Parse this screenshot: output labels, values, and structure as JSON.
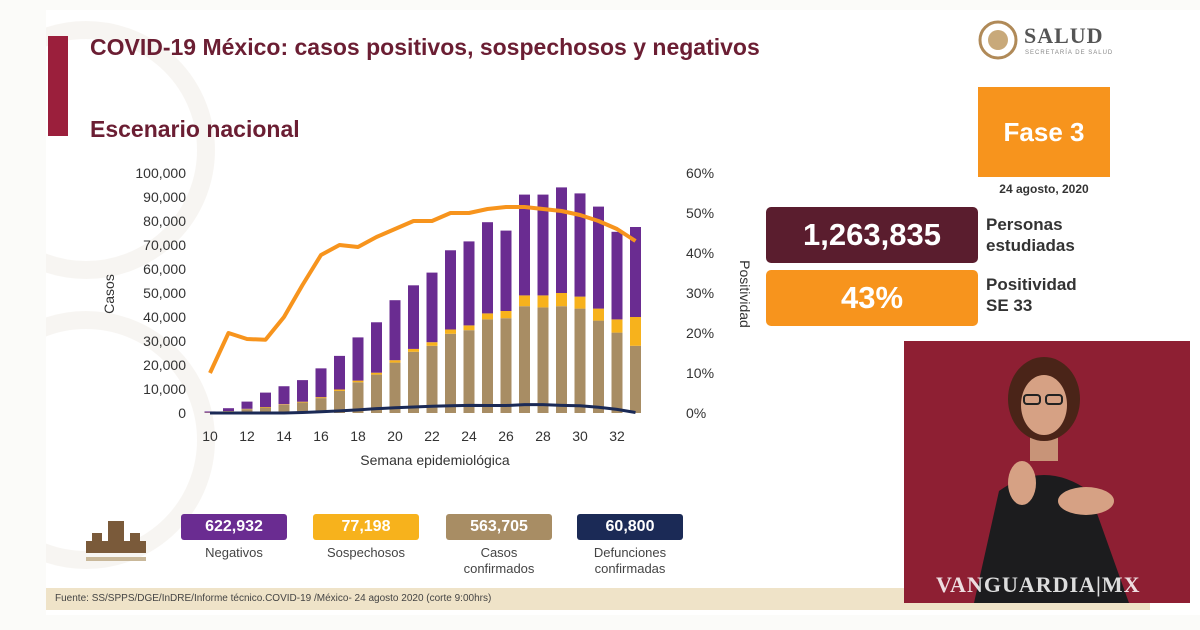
{
  "header": {
    "title": "COVID-19 México: casos positivos, sospechosos y negativos",
    "subtitle": "Escenario nacional"
  },
  "logo": {
    "name": "SALUD",
    "sub": "SECRETARÍA DE SALUD"
  },
  "phase": {
    "label": "Fase 3",
    "date": "24 agosto, 2020"
  },
  "stats": {
    "studied_value": "1,263,835",
    "studied_label_1": "Personas",
    "studied_label_2": "estudiadas",
    "positivity_value": "43%",
    "positivity_label_1": "Positividad",
    "positivity_label_2": "SE 33"
  },
  "legend": {
    "negativos": {
      "value": "622,932",
      "label": "Negativos",
      "color": "#6a2c91"
    },
    "sospechosos": {
      "value": "77,198",
      "label": "Sospechosos",
      "color": "#f7b21c"
    },
    "confirmados": {
      "value": "563,705",
      "label_1": "Casos",
      "label_2": "confirmados",
      "color": "#a88d64"
    },
    "defunciones": {
      "value": "60,800",
      "label_1": "Defunciones",
      "label_2": "confirmadas",
      "color": "#1b2a56"
    }
  },
  "source": "Fuente: SS/SPPS/DGE/InDRE/Informe técnico.COVID-19 /México- 24 agosto 2020 (corte 9:00hrs)",
  "watermark_text": "VANGUARDIA",
  "watermark_suffix": "MX",
  "chart_data": {
    "type": "bar",
    "stacked": true,
    "xlabel": "Semana epidemiológica",
    "ylabel": "Casos",
    "y2label": "Positividad",
    "ylim": [
      0,
      100000
    ],
    "y2lim": [
      0,
      60
    ],
    "yticks": [
      "0",
      "10,000",
      "20,000",
      "30,000",
      "40,000",
      "50,000",
      "60,000",
      "70,000",
      "80,000",
      "90,000",
      "100,000"
    ],
    "y2ticks": [
      "0%",
      "10%",
      "20%",
      "30%",
      "40%",
      "50%",
      "60%"
    ],
    "xticks": [
      "10",
      "12",
      "14",
      "16",
      "18",
      "20",
      "22",
      "24",
      "26",
      "28",
      "30",
      "32"
    ],
    "x": [
      10,
      11,
      12,
      13,
      14,
      15,
      16,
      17,
      18,
      19,
      20,
      21,
      22,
      23,
      24,
      25,
      26,
      27,
      28,
      29,
      30,
      31,
      32,
      33
    ],
    "series": [
      {
        "name": "Casos confirmados",
        "color": "#a88d64",
        "values": [
          100,
          700,
          1600,
          2300,
          3400,
          4400,
          6200,
          9200,
          12800,
          16000,
          21000,
          25500,
          28000,
          33000,
          34500,
          39000,
          39500,
          44500,
          44000,
          44500,
          43500,
          38500,
          33500,
          28000
        ]
      },
      {
        "name": "Sospechosos",
        "color": "#f7b21c",
        "values": [
          50,
          100,
          150,
          200,
          250,
          300,
          400,
          600,
          700,
          800,
          1000,
          1200,
          1500,
          1800,
          2000,
          2500,
          3000,
          4500,
          5000,
          5500,
          5000,
          5000,
          5500,
          12000
        ]
      },
      {
        "name": "Negativos",
        "color": "#6a2c91",
        "values": [
          500,
          1200,
          3000,
          6000,
          7500,
          9000,
          12000,
          14000,
          18000,
          21000,
          25000,
          26500,
          29000,
          33000,
          35000,
          38000,
          33500,
          42000,
          42000,
          44000,
          43000,
          42500,
          36500,
          37500
        ]
      },
      {
        "name": "Defunciones confirmadas",
        "type": "line",
        "color": "#1b2a56",
        "values": [
          0,
          0,
          0,
          0,
          0,
          200,
          500,
          900,
          1300,
          1800,
          2200,
          2500,
          2800,
          3000,
          3200,
          3100,
          3100,
          3500,
          3500,
          3200,
          3000,
          2400,
          1500,
          200
        ]
      },
      {
        "name": "Positividad",
        "type": "line",
        "axis": "right",
        "color": "#f7941d",
        "values": [
          10,
          20,
          18.5,
          18.3,
          24,
          32,
          39.5,
          42,
          41.5,
          44,
          46,
          48,
          48,
          50,
          50,
          51,
          51.5,
          51.5,
          51,
          50.5,
          49.5,
          48,
          46,
          43
        ]
      }
    ]
  }
}
